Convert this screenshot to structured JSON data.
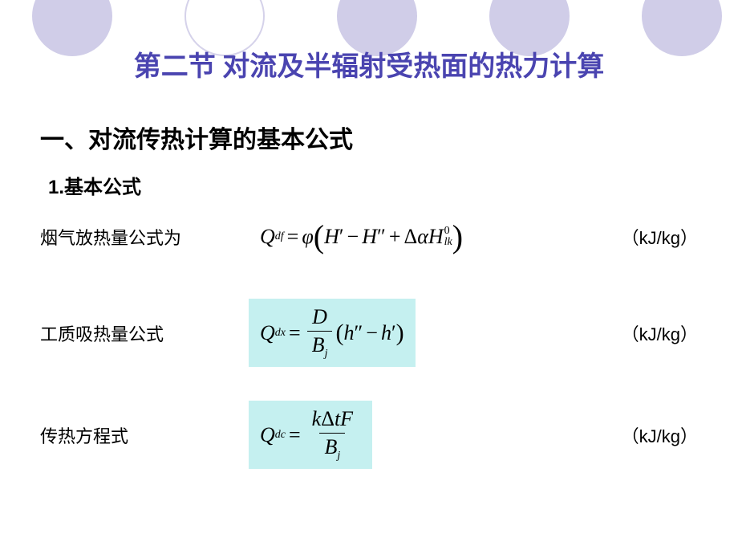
{
  "title": "第二节  对流及半辐射受热面的热力计算",
  "section_heading": "一、对流传热计算的基本公式",
  "sub_heading": "1.基本公式",
  "rows": {
    "r1": {
      "label": "烟气放热量公式为",
      "unit": "（kJ/kg）"
    },
    "r2": {
      "label": "工质吸热量公式",
      "unit": "（kJ/kg）"
    },
    "r3": {
      "label": "传热方程式",
      "unit": "（kJ/kg）"
    }
  },
  "style": {
    "title_color": "#4a44b0",
    "highlight_bg": "#c5f0f0",
    "circle_fill": "#d0cde8",
    "background": "#ffffff",
    "title_fontsize": 34,
    "section_fontsize": 30,
    "label_fontsize": 22,
    "formula_fontsize": 26
  }
}
